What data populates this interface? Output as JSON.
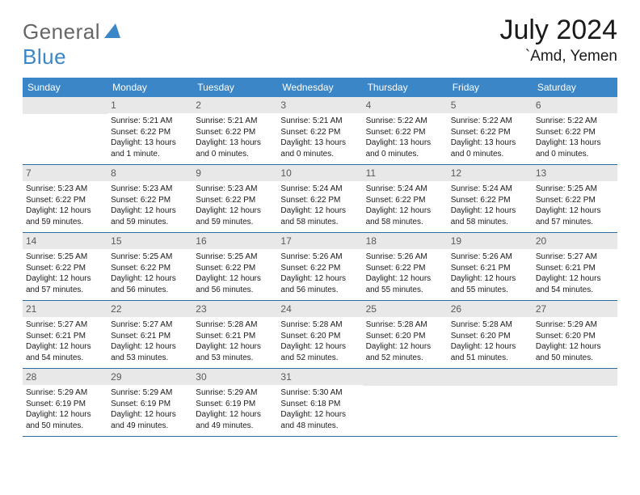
{
  "brand": {
    "general": "General",
    "blue": "Blue"
  },
  "title": "July 2024",
  "location": "`Amd, Yemen",
  "header_bg": "#3b86c6",
  "header_fg": "#ffffff",
  "daynum_bg": "#e8e8e8",
  "daynum_fg": "#5a5a5a",
  "divider_color": "#2f6ca3",
  "text_color": "#1a1a1a",
  "font_size_body": 10,
  "font_size_dow": 12,
  "font_size_title": 34,
  "font_size_location": 19,
  "days_of_week": [
    "Sunday",
    "Monday",
    "Tuesday",
    "Wednesday",
    "Thursday",
    "Friday",
    "Saturday"
  ],
  "weeks": [
    [
      {
        "n": null
      },
      {
        "n": "1",
        "sr": "Sunrise: 5:21 AM",
        "ss": "Sunset: 6:22 PM",
        "d1": "Daylight: 13 hours",
        "d2": "and 1 minute."
      },
      {
        "n": "2",
        "sr": "Sunrise: 5:21 AM",
        "ss": "Sunset: 6:22 PM",
        "d1": "Daylight: 13 hours",
        "d2": "and 0 minutes."
      },
      {
        "n": "3",
        "sr": "Sunrise: 5:21 AM",
        "ss": "Sunset: 6:22 PM",
        "d1": "Daylight: 13 hours",
        "d2": "and 0 minutes."
      },
      {
        "n": "4",
        "sr": "Sunrise: 5:22 AM",
        "ss": "Sunset: 6:22 PM",
        "d1": "Daylight: 13 hours",
        "d2": "and 0 minutes."
      },
      {
        "n": "5",
        "sr": "Sunrise: 5:22 AM",
        "ss": "Sunset: 6:22 PM",
        "d1": "Daylight: 13 hours",
        "d2": "and 0 minutes."
      },
      {
        "n": "6",
        "sr": "Sunrise: 5:22 AM",
        "ss": "Sunset: 6:22 PM",
        "d1": "Daylight: 13 hours",
        "d2": "and 0 minutes."
      }
    ],
    [
      {
        "n": "7",
        "sr": "Sunrise: 5:23 AM",
        "ss": "Sunset: 6:22 PM",
        "d1": "Daylight: 12 hours",
        "d2": "and 59 minutes."
      },
      {
        "n": "8",
        "sr": "Sunrise: 5:23 AM",
        "ss": "Sunset: 6:22 PM",
        "d1": "Daylight: 12 hours",
        "d2": "and 59 minutes."
      },
      {
        "n": "9",
        "sr": "Sunrise: 5:23 AM",
        "ss": "Sunset: 6:22 PM",
        "d1": "Daylight: 12 hours",
        "d2": "and 59 minutes."
      },
      {
        "n": "10",
        "sr": "Sunrise: 5:24 AM",
        "ss": "Sunset: 6:22 PM",
        "d1": "Daylight: 12 hours",
        "d2": "and 58 minutes."
      },
      {
        "n": "11",
        "sr": "Sunrise: 5:24 AM",
        "ss": "Sunset: 6:22 PM",
        "d1": "Daylight: 12 hours",
        "d2": "and 58 minutes."
      },
      {
        "n": "12",
        "sr": "Sunrise: 5:24 AM",
        "ss": "Sunset: 6:22 PM",
        "d1": "Daylight: 12 hours",
        "d2": "and 58 minutes."
      },
      {
        "n": "13",
        "sr": "Sunrise: 5:25 AM",
        "ss": "Sunset: 6:22 PM",
        "d1": "Daylight: 12 hours",
        "d2": "and 57 minutes."
      }
    ],
    [
      {
        "n": "14",
        "sr": "Sunrise: 5:25 AM",
        "ss": "Sunset: 6:22 PM",
        "d1": "Daylight: 12 hours",
        "d2": "and 57 minutes."
      },
      {
        "n": "15",
        "sr": "Sunrise: 5:25 AM",
        "ss": "Sunset: 6:22 PM",
        "d1": "Daylight: 12 hours",
        "d2": "and 56 minutes."
      },
      {
        "n": "16",
        "sr": "Sunrise: 5:25 AM",
        "ss": "Sunset: 6:22 PM",
        "d1": "Daylight: 12 hours",
        "d2": "and 56 minutes."
      },
      {
        "n": "17",
        "sr": "Sunrise: 5:26 AM",
        "ss": "Sunset: 6:22 PM",
        "d1": "Daylight: 12 hours",
        "d2": "and 56 minutes."
      },
      {
        "n": "18",
        "sr": "Sunrise: 5:26 AM",
        "ss": "Sunset: 6:22 PM",
        "d1": "Daylight: 12 hours",
        "d2": "and 55 minutes."
      },
      {
        "n": "19",
        "sr": "Sunrise: 5:26 AM",
        "ss": "Sunset: 6:21 PM",
        "d1": "Daylight: 12 hours",
        "d2": "and 55 minutes."
      },
      {
        "n": "20",
        "sr": "Sunrise: 5:27 AM",
        "ss": "Sunset: 6:21 PM",
        "d1": "Daylight: 12 hours",
        "d2": "and 54 minutes."
      }
    ],
    [
      {
        "n": "21",
        "sr": "Sunrise: 5:27 AM",
        "ss": "Sunset: 6:21 PM",
        "d1": "Daylight: 12 hours",
        "d2": "and 54 minutes."
      },
      {
        "n": "22",
        "sr": "Sunrise: 5:27 AM",
        "ss": "Sunset: 6:21 PM",
        "d1": "Daylight: 12 hours",
        "d2": "and 53 minutes."
      },
      {
        "n": "23",
        "sr": "Sunrise: 5:28 AM",
        "ss": "Sunset: 6:21 PM",
        "d1": "Daylight: 12 hours",
        "d2": "and 53 minutes."
      },
      {
        "n": "24",
        "sr": "Sunrise: 5:28 AM",
        "ss": "Sunset: 6:20 PM",
        "d1": "Daylight: 12 hours",
        "d2": "and 52 minutes."
      },
      {
        "n": "25",
        "sr": "Sunrise: 5:28 AM",
        "ss": "Sunset: 6:20 PM",
        "d1": "Daylight: 12 hours",
        "d2": "and 52 minutes."
      },
      {
        "n": "26",
        "sr": "Sunrise: 5:28 AM",
        "ss": "Sunset: 6:20 PM",
        "d1": "Daylight: 12 hours",
        "d2": "and 51 minutes."
      },
      {
        "n": "27",
        "sr": "Sunrise: 5:29 AM",
        "ss": "Sunset: 6:20 PM",
        "d1": "Daylight: 12 hours",
        "d2": "and 50 minutes."
      }
    ],
    [
      {
        "n": "28",
        "sr": "Sunrise: 5:29 AM",
        "ss": "Sunset: 6:19 PM",
        "d1": "Daylight: 12 hours",
        "d2": "and 50 minutes."
      },
      {
        "n": "29",
        "sr": "Sunrise: 5:29 AM",
        "ss": "Sunset: 6:19 PM",
        "d1": "Daylight: 12 hours",
        "d2": "and 49 minutes."
      },
      {
        "n": "30",
        "sr": "Sunrise: 5:29 AM",
        "ss": "Sunset: 6:19 PM",
        "d1": "Daylight: 12 hours",
        "d2": "and 49 minutes."
      },
      {
        "n": "31",
        "sr": "Sunrise: 5:30 AM",
        "ss": "Sunset: 6:18 PM",
        "d1": "Daylight: 12 hours",
        "d2": "and 48 minutes."
      },
      {
        "n": null
      },
      {
        "n": null
      },
      {
        "n": null
      }
    ]
  ]
}
